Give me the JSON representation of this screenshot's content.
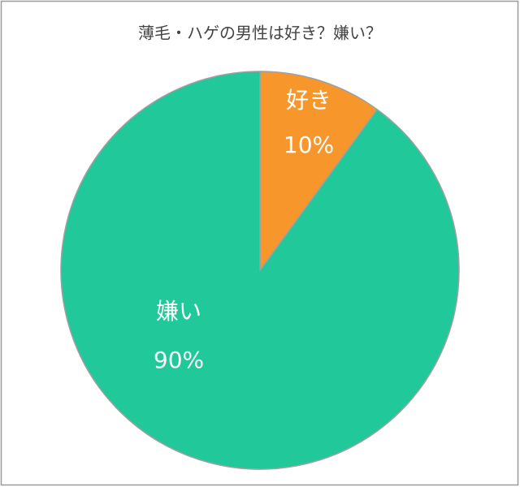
{
  "chart_data": {
    "type": "pie",
    "title": "薄毛・ハゲの男性は好き？嫌い？",
    "categories": [
      "好き",
      "嫌い"
    ],
    "values": [
      10,
      90
    ],
    "value_labels": [
      "10%",
      "90%"
    ],
    "colors": [
      "#f7962b",
      "#21c89a"
    ]
  }
}
